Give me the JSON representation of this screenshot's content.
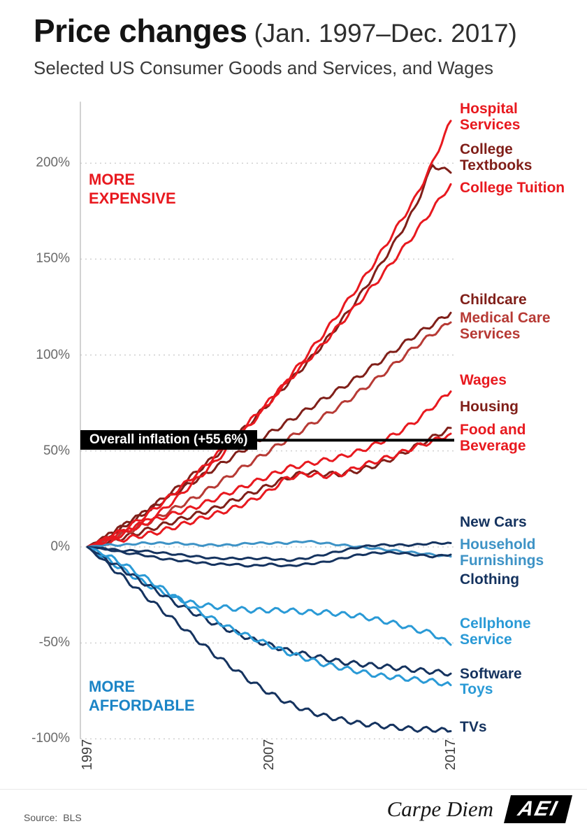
{
  "header": {
    "title": "Price changes",
    "title_suffix": "(Jan. 1997–Dec. 2017)",
    "subtitle": "Selected US Consumer Goods and Services, and Wages"
  },
  "chart_data": {
    "type": "line",
    "title": "Price changes (Jan. 1997–Dec. 2017)",
    "subtitle": "Selected US Consumer Goods and Services, and Wages",
    "x": [
      1997,
      1998,
      1999,
      2000,
      2001,
      2002,
      2003,
      2004,
      2005,
      2006,
      2007,
      2008,
      2009,
      2010,
      2011,
      2012,
      2013,
      2014,
      2015,
      2016,
      2017
    ],
    "x_range": [
      1997,
      2017
    ],
    "y_range": [
      -100,
      232
    ],
    "y_unit": "%",
    "grid": "horizontal-dotted",
    "legend_position": "right-edge-labels",
    "yticks": [
      {
        "value": 200,
        "label": "200%"
      },
      {
        "value": 150,
        "label": "150%"
      },
      {
        "value": 100,
        "label": "100%"
      },
      {
        "value": 50,
        "label": "50%"
      },
      {
        "value": 0,
        "label": "0%"
      },
      {
        "value": -50,
        "label": "-50%"
      },
      {
        "value": -100,
        "label": "-100%"
      }
    ],
    "xticks": [
      {
        "value": 1997,
        "label": "1997"
      },
      {
        "value": 2007,
        "label": "2007"
      },
      {
        "value": 2017,
        "label": "2017"
      }
    ],
    "series": [
      {
        "name": "College Textbooks",
        "color": "#801f19",
        "label_lines": [
          "College",
          "Textbooks"
        ],
        "label_y": 203,
        "values": [
          0,
          5,
          11,
          17,
          24,
          31,
          39,
          47,
          56,
          65,
          75,
          85,
          95,
          106,
          118,
          131,
          145,
          160,
          176,
          199,
          195
        ]
      },
      {
        "name": "Childcare",
        "color": "#801f19",
        "label_lines": [
          "Childcare"
        ],
        "label_y": 129,
        "values": [
          0,
          5,
          11,
          17,
          23,
          29,
          35,
          41,
          47,
          53,
          59,
          65,
          71,
          77,
          83,
          89,
          96,
          103,
          110,
          116,
          122
        ]
      },
      {
        "name": "Housing",
        "color": "#801f19",
        "label_lines": [
          "Housing"
        ],
        "label_y": 73,
        "values": [
          0,
          2,
          5,
          8,
          11,
          14,
          17,
          20,
          24,
          28,
          32,
          36,
          39,
          38,
          38,
          40,
          43,
          47,
          52,
          57,
          62
        ]
      },
      {
        "name": "Medical Care Services",
        "color": "#b73a35",
        "label_lines": [
          "Medical Care",
          "Services"
        ],
        "label_y": 115,
        "values": [
          0,
          3,
          7,
          11,
          16,
          21,
          26,
          32,
          38,
          44,
          50,
          56,
          62,
          68,
          74,
          81,
          88,
          96,
          104,
          111,
          117
        ]
      },
      {
        "name": "College Tuition",
        "color": "#e8191f",
        "label_lines": [
          "College Tuition"
        ],
        "label_y": 187,
        "values": [
          0,
          4,
          9,
          15,
          22,
          30,
          38,
          47,
          56,
          66,
          76,
          86,
          96,
          106,
          117,
          128,
          139,
          151,
          163,
          176,
          189
        ]
      },
      {
        "name": "Hospital Services",
        "color": "#e8191f",
        "label_lines": [
          "Hospital",
          "Services"
        ],
        "label_y": 224,
        "values": [
          0,
          3,
          7,
          12,
          18,
          26,
          35,
          44,
          54,
          64,
          75,
          87,
          99,
          111,
          124,
          137,
          151,
          166,
          181,
          200,
          222
        ]
      },
      {
        "name": "Wages",
        "color": "#e8191f",
        "label_lines": [
          "Wages"
        ],
        "label_y": 87,
        "values": [
          0,
          4,
          8,
          12,
          15,
          18,
          21,
          25,
          29,
          33,
          37,
          41,
          43,
          45,
          47,
          50,
          54,
          59,
          65,
          73,
          81
        ]
      },
      {
        "name": "Food and Beverage",
        "color": "#e8191f",
        "label_lines": [
          "Food and",
          "Beverage"
        ],
        "label_y": 57,
        "values": [
          0,
          2,
          4,
          6,
          8,
          11,
          14,
          17,
          20,
          24,
          29,
          36,
          38,
          37,
          38,
          42,
          45,
          48,
          52,
          55,
          59
        ]
      },
      {
        "name": "Household Furnishings",
        "color": "#3e93c6",
        "label_lines": [
          "Household",
          "Furnishings"
        ],
        "label_y": -3,
        "values": [
          0,
          1,
          1,
          2,
          2,
          2,
          1,
          1,
          1,
          2,
          2,
          2,
          3,
          2,
          1,
          0,
          -1,
          -2,
          -3,
          -4,
          -5
        ]
      },
      {
        "name": "Clothing",
        "color": "#15335f",
        "label_lines": [
          "Clothing"
        ],
        "label_y": -17,
        "values": [
          0,
          -1,
          -3,
          -4,
          -6,
          -7,
          -8,
          -9,
          -9,
          -10,
          -9,
          -10,
          -9,
          -8,
          -6,
          -4,
          -3,
          -3,
          -4,
          -5,
          -4
        ]
      },
      {
        "name": "New Cars",
        "color": "#15335f",
        "label_lines": [
          "New Cars"
        ],
        "label_y": 13,
        "values": [
          0,
          -1,
          -2,
          -2,
          -3,
          -4,
          -5,
          -6,
          -6,
          -6,
          -6,
          -7,
          -6,
          -4,
          -2,
          0,
          1,
          1,
          1,
          2,
          2
        ]
      },
      {
        "name": "Cellphone Service",
        "color": "#2a9ad6",
        "label_lines": [
          "Cellphone",
          "Service"
        ],
        "label_y": -44,
        "values": [
          0,
          -6,
          -12,
          -18,
          -23,
          -27,
          -30,
          -31,
          -32,
          -33,
          -33,
          -33,
          -34,
          -34,
          -35,
          -36,
          -38,
          -40,
          -43,
          -45,
          -51
        ]
      },
      {
        "name": "Software",
        "color": "#15335f",
        "label_lines": [
          "Software"
        ],
        "label_y": -66,
        "values": [
          0,
          -6,
          -12,
          -18,
          -24,
          -30,
          -35,
          -40,
          -44,
          -48,
          -51,
          -54,
          -56,
          -58,
          -60,
          -61,
          -62,
          -63,
          -64,
          -65,
          -66
        ]
      },
      {
        "name": "Toys",
        "color": "#2a9ad6",
        "label_lines": [
          "Toys"
        ],
        "label_y": -74,
        "values": [
          0,
          -4,
          -9,
          -15,
          -21,
          -27,
          -33,
          -38,
          -43,
          -47,
          -51,
          -55,
          -58,
          -61,
          -63,
          -65,
          -67,
          -68,
          -69,
          -70,
          -72
        ]
      },
      {
        "name": "TVs",
        "color": "#15335f",
        "label_lines": [
          "TVs"
        ],
        "label_y": -94,
        "values": [
          0,
          -8,
          -16,
          -24,
          -32,
          -40,
          -48,
          -56,
          -63,
          -70,
          -76,
          -81,
          -85,
          -88,
          -90,
          -92,
          -93,
          -94,
          -95,
          -95,
          -96
        ]
      }
    ],
    "reference_line": {
      "label": "Overall inflation (+55.6%)",
      "value": 55.6,
      "color": "#000000"
    },
    "annotations": [
      {
        "id": "more-expensive",
        "text_lines": [
          "MORE",
          "EXPENSIVE"
        ],
        "color": "#e8191f",
        "position": "upper-left"
      },
      {
        "id": "more-affordable",
        "text_lines": [
          "MORE",
          "AFFORDABLE"
        ],
        "color": "#1b84c6",
        "position": "lower-left"
      }
    ]
  },
  "footer": {
    "source_label": "Source:",
    "source_value": "BLS",
    "brand_text": "Carpe Diem",
    "logo_text": "AEI"
  }
}
